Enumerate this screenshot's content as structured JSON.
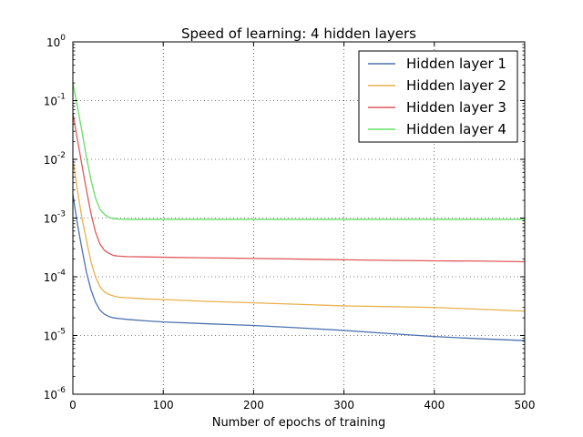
{
  "chart_data": {
    "type": "line",
    "title": "Speed of learning: 4 hidden layers",
    "xlabel": "Number of epochs of training",
    "ylabel": "",
    "xlim": [
      0,
      500
    ],
    "ylim": [
      1e-06,
      1
    ],
    "yscale": "log",
    "grid": true,
    "legend_position": "top-right",
    "x_ticks": [
      0,
      100,
      200,
      300,
      400,
      500
    ],
    "y_ticks": [
      {
        "value": 1e-06,
        "base": "10",
        "exp": "-6"
      },
      {
        "value": 1e-05,
        "base": "10",
        "exp": "-5"
      },
      {
        "value": 0.0001,
        "base": "10",
        "exp": "-4"
      },
      {
        "value": 0.001,
        "base": "10",
        "exp": "-3"
      },
      {
        "value": 0.01,
        "base": "10",
        "exp": "-2"
      },
      {
        "value": 0.1,
        "base": "10",
        "exp": "-1"
      },
      {
        "value": 1,
        "base": "10",
        "exp": "0"
      }
    ],
    "x": [
      0,
      5,
      10,
      15,
      20,
      25,
      30,
      35,
      40,
      45,
      50,
      60,
      80,
      100,
      150,
      200,
      250,
      300,
      350,
      400,
      450,
      500
    ],
    "series": [
      {
        "name": "Hidden layer 1",
        "color": "#4c72b0",
        "values": [
          0.0025,
          0.0008,
          0.0003,
          0.00012,
          6e-05,
          3.7e-05,
          2.7e-05,
          2.3e-05,
          2.1e-05,
          2e-05,
          1.95e-05,
          1.88e-05,
          1.78e-05,
          1.7e-05,
          1.58e-05,
          1.48e-05,
          1.35e-05,
          1.22e-05,
          1.08e-05,
          9.6e-06,
          8.8e-06,
          8.2e-06
        ]
      },
      {
        "name": "Hidden layer 2",
        "color": "#e8b14c",
        "values": [
          0.01,
          0.003,
          0.001,
          0.00042,
          0.00018,
          0.0001,
          6.8e-05,
          5.5e-05,
          5e-05,
          4.7e-05,
          4.5e-05,
          4.4e-05,
          4.2e-05,
          4.1e-05,
          3.8e-05,
          3.6e-05,
          3.4e-05,
          3.2e-05,
          3.1e-05,
          3e-05,
          2.8e-05,
          2.6e-05
        ]
      },
      {
        "name": "Hidden layer 3",
        "color": "#e05a5a",
        "values": [
          0.06,
          0.022,
          0.008,
          0.003,
          0.0012,
          0.00058,
          0.00036,
          0.00028,
          0.00025,
          0.00023,
          0.000225,
          0.00022,
          0.000218,
          0.000215,
          0.00021,
          0.000205,
          0.0002,
          0.000195,
          0.00019,
          0.000187,
          0.000185,
          0.00018
        ]
      },
      {
        "name": "Hidden layer 4",
        "color": "#66dd66",
        "values": [
          0.2,
          0.08,
          0.03,
          0.011,
          0.0045,
          0.0022,
          0.0014,
          0.00115,
          0.00102,
          0.00098,
          0.00096,
          0.00095,
          0.00095,
          0.00095,
          0.00095,
          0.00095,
          0.00095,
          0.00095,
          0.00095,
          0.00095,
          0.00095,
          0.00095
        ]
      }
    ]
  }
}
